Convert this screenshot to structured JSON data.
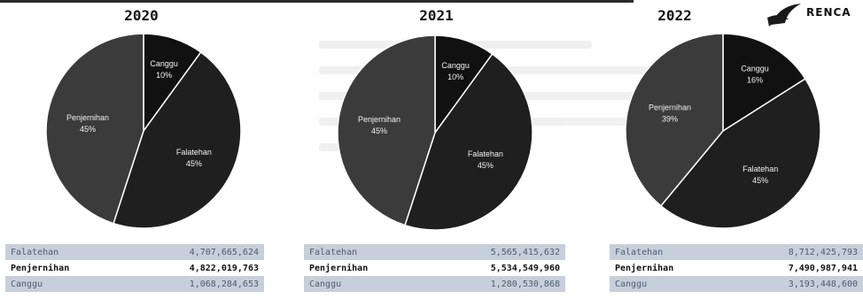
{
  "logo_text": "RENCA",
  "chart_data": [
    {
      "type": "pie",
      "title": "2020",
      "slices": [
        {
          "label": "Canggu",
          "pct": "10%",
          "value": 10,
          "color": "#111111"
        },
        {
          "label": "Falatehan",
          "pct": "45%",
          "value": 45,
          "color": "#1f1f1f"
        },
        {
          "label": "Penjernihan",
          "pct": "45%",
          "value": 45,
          "color": "#3b3b3b"
        }
      ],
      "table": [
        {
          "label": "Falatehan",
          "value": "4,707,665,624"
        },
        {
          "label": "Penjernihan",
          "value": "4,822,019,763"
        },
        {
          "label": "Canggu",
          "value": "1,068,284,653"
        }
      ]
    },
    {
      "type": "pie",
      "title": "2021",
      "slices": [
        {
          "label": "Canggu",
          "pct": "10%",
          "value": 10,
          "color": "#111111"
        },
        {
          "label": "Falatehan",
          "pct": "45%",
          "value": 45,
          "color": "#1f1f1f"
        },
        {
          "label": "Penjernihan",
          "pct": "45%",
          "value": 45,
          "color": "#3b3b3b"
        }
      ],
      "table": [
        {
          "label": "Falatehan",
          "value": "5,565,415,632"
        },
        {
          "label": "Penjernihan",
          "value": "5,534,549,960"
        },
        {
          "label": "Canggu",
          "value": "1,280,530,868"
        }
      ]
    },
    {
      "type": "pie",
      "title": "2022",
      "slices": [
        {
          "label": "Canggu",
          "pct": "16%",
          "value": 16,
          "color": "#111111"
        },
        {
          "label": "Falatehan",
          "pct": "45%",
          "value": 45,
          "color": "#1f1f1f"
        },
        {
          "label": "Penjernihan",
          "pct": "39%",
          "value": 39,
          "color": "#3b3b3b"
        }
      ],
      "table": [
        {
          "label": "Falatehan",
          "value": "8,712,425,793"
        },
        {
          "label": "Penjernihan",
          "value": "7,490,987,941"
        },
        {
          "label": "Canggu",
          "value": "3,193,448,600"
        }
      ]
    }
  ]
}
